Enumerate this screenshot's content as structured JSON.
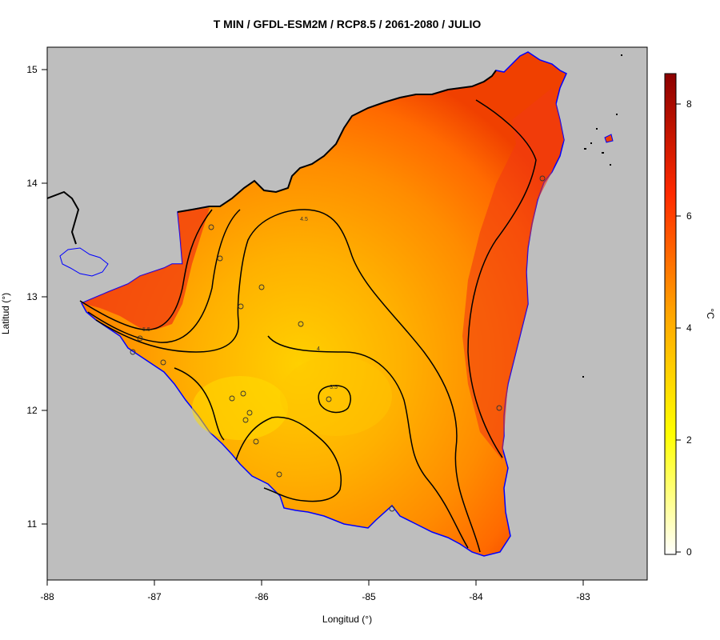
{
  "title": "T MIN / GFDL-ESM2M / RCP8.5 / 2061-2080 / JULIO",
  "x_axis_label": "Longitud (°)",
  "y_axis_label": "Latitud (°)",
  "x_ticks": [
    "-88",
    "-87",
    "-86",
    "-85",
    "-84",
    "-83"
  ],
  "y_ticks": [
    "11",
    "12",
    "13",
    "14",
    "15"
  ],
  "colorbar": {
    "unit": "°C",
    "ticks": [
      "0",
      "2",
      "4",
      "6",
      "8"
    ],
    "range": [
      0,
      8.6
    ],
    "colors": [
      "#ffffff",
      "#ffff00",
      "#ffa500",
      "#ff2000",
      "#8b0000"
    ]
  },
  "contour_labels": [
    "3.5",
    "4",
    "4.5",
    "5.5"
  ],
  "colors": {
    "background_land": "#bebebe",
    "sea": "#bebebe",
    "coast": "#0000ff",
    "border": "#000000"
  }
}
